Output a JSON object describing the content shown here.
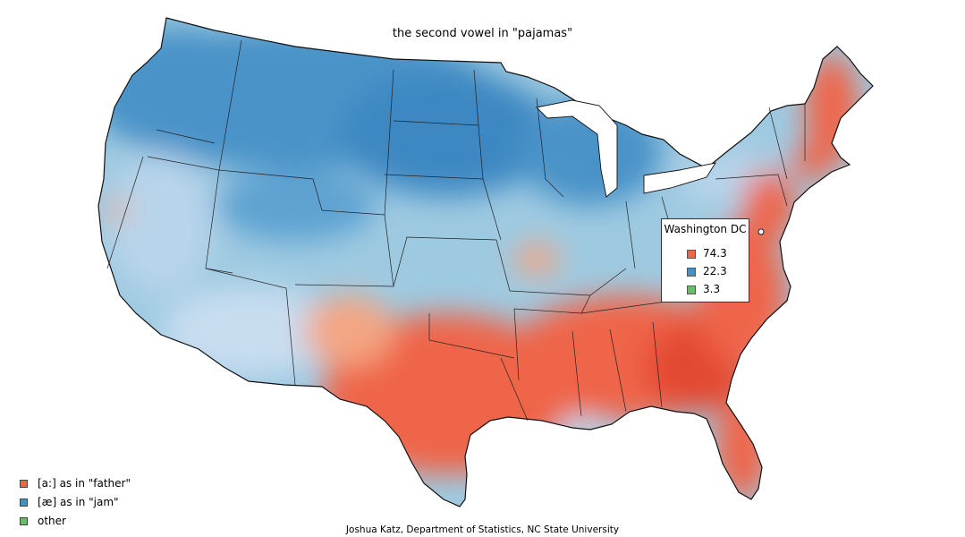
{
  "title": "the second vowel in \"pajamas\"",
  "credit": "Joshua Katz, Department of Statistics, NC State University",
  "colors": {
    "father": "#ef6548",
    "jam": "#4292c6",
    "other": "#66bd63",
    "border": "#111111"
  },
  "legend": [
    {
      "label": "[a:] as in \"father\"",
      "color": "#ef6548"
    },
    {
      "label": "[æ] as in \"jam\"",
      "color": "#4292c6"
    },
    {
      "label": "other",
      "color": "#66bd63"
    }
  ],
  "tooltip": {
    "title": "Washington DC",
    "rows": [
      {
        "value": "74.3",
        "color": "#ef6548"
      },
      {
        "value": "22.3",
        "color": "#4292c6"
      },
      {
        "value": "3.3",
        "color": "#66bd63"
      }
    ]
  }
}
